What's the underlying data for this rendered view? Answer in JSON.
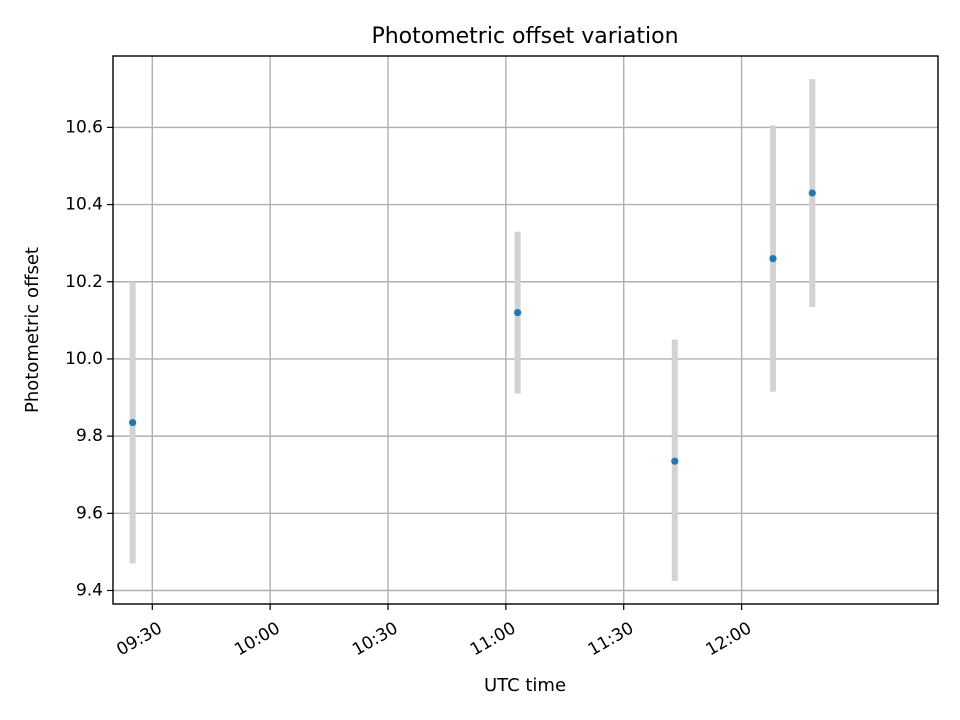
{
  "chart_data": {
    "type": "scatter",
    "title": "Photometric offset variation",
    "xlabel": "UTC time",
    "ylabel": "Photometric offset",
    "x_axis": {
      "type": "time",
      "range": [
        "09:20",
        "12:50"
      ],
      "ticks": [
        "09:30",
        "10:00",
        "10:30",
        "11:00",
        "11:30",
        "12:00"
      ]
    },
    "y_axis": {
      "range": [
        9.365,
        10.785
      ],
      "ticks": [
        "9.4",
        "9.6",
        "9.8",
        "10.0",
        "10.2",
        "10.4",
        "10.6"
      ]
    },
    "grid": true,
    "marker_color": "#1f77b4",
    "errorbar_color": "#d3d3d3",
    "points": [
      {
        "x": "09:25",
        "y": 9.835,
        "y_low": 9.47,
        "y_high": 10.2
      },
      {
        "x": "11:03",
        "y": 10.12,
        "y_low": 9.91,
        "y_high": 10.33
      },
      {
        "x": "11:43",
        "y": 9.735,
        "y_low": 9.425,
        "y_high": 10.05
      },
      {
        "x": "12:08",
        "y": 10.26,
        "y_low": 9.915,
        "y_high": 10.605
      },
      {
        "x": "12:18",
        "y": 10.43,
        "y_low": 10.135,
        "y_high": 10.725
      }
    ]
  }
}
